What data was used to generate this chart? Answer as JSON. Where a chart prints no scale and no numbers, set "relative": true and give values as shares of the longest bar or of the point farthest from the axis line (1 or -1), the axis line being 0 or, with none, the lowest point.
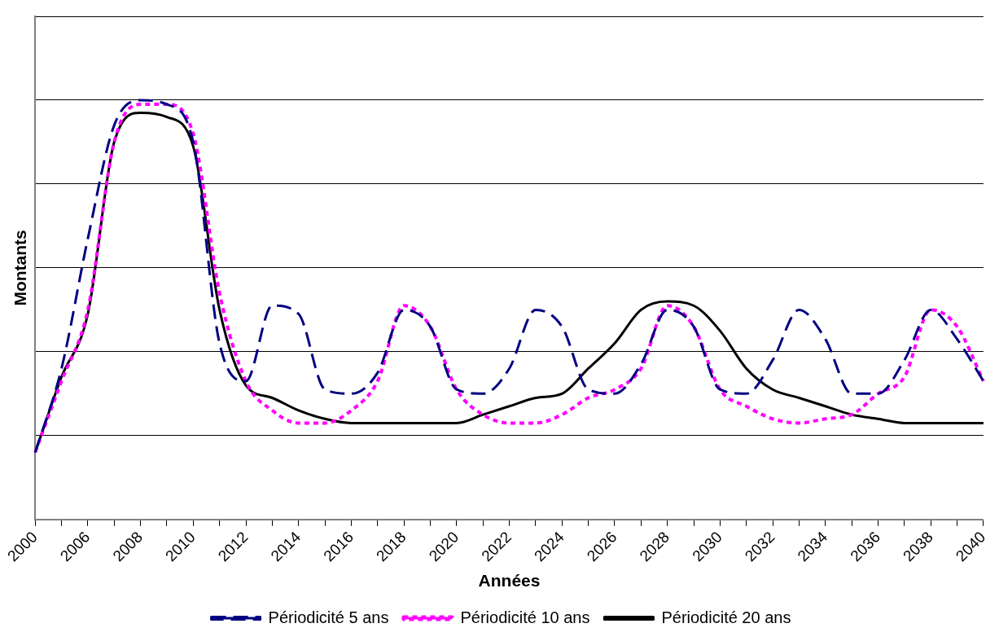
{
  "chart_data": {
    "type": "line",
    "relative": true,
    "xlabel": "Années",
    "ylabel": "Montants",
    "grid": "y",
    "legend": "bottom",
    "marker": "none",
    "categories": [
      "2000",
      null,
      "2006",
      null,
      "2008",
      null,
      "2010",
      null,
      "2012",
      null,
      "2014",
      null,
      "2016",
      null,
      "2018",
      null,
      "2020",
      null,
      "2022",
      null,
      "2024",
      null,
      "2026",
      null,
      "2028",
      null,
      "2030",
      null,
      "2032",
      null,
      "2034",
      null,
      "2036",
      null,
      "2038",
      null,
      "2040"
    ],
    "series": [
      {
        "name": "Périodicité 5 ans",
        "color": "#000080",
        "line_style": "dashed",
        "values": [
          0.16,
          0.36,
          0.67,
          0.94,
          1,
          0.99,
          0.9,
          0.42,
          0.33,
          0.51,
          0.49,
          0.31,
          0.3,
          0.35,
          0.5,
          0.46,
          0.31,
          0.3,
          0.36,
          0.5,
          0.46,
          0.31,
          0.3,
          0.37,
          0.5,
          0.46,
          0.31,
          0.3,
          0.38,
          0.5,
          0.43,
          0.3,
          0.3,
          0.38,
          0.5,
          0.43,
          0.33
        ]
      },
      {
        "name": "Périodicité 10 ans",
        "color": "#ff00ff",
        "line_style": "dotted",
        "values": [
          0.16,
          0.33,
          0.5,
          0.9,
          0.99,
          0.99,
          0.92,
          0.54,
          0.33,
          0.26,
          0.23,
          0.23,
          0.26,
          0.33,
          0.51,
          0.46,
          0.31,
          0.25,
          0.23,
          0.23,
          0.25,
          0.29,
          0.31,
          0.36,
          0.51,
          0.46,
          0.31,
          0.27,
          0.24,
          0.23,
          0.24,
          0.25,
          0.3,
          0.34,
          0.5,
          0.46,
          0.33
        ]
      },
      {
        "name": "Périodicité 20 ans",
        "color": "#000000",
        "line_style": "solid",
        "values": [
          0.16,
          0.34,
          0.49,
          0.9,
          0.97,
          0.96,
          0.89,
          0.5,
          0.32,
          0.29,
          0.26,
          0.24,
          0.23,
          0.23,
          0.23,
          0.23,
          0.23,
          0.25,
          0.27,
          0.29,
          0.3,
          0.36,
          0.42,
          0.5,
          0.52,
          0.51,
          0.45,
          0.36,
          0.31,
          0.29,
          0.27,
          0.25,
          0.24,
          0.23,
          0.23,
          0.23,
          0.23
        ]
      }
    ]
  }
}
